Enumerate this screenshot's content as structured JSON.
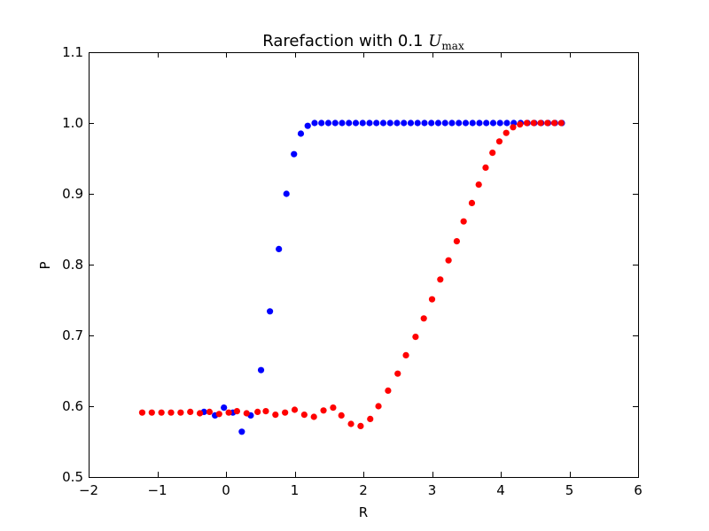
{
  "chart_data": {
    "type": "scatter",
    "title": "Rarefaction with 0.1 ",
    "title_math": "U",
    "title_math_sub": "max",
    "xlabel": "R",
    "ylabel": "P",
    "xlim": [
      -2,
      6
    ],
    "ylim": [
      0.5,
      1.1
    ],
    "xticks": [
      -2,
      -1,
      0,
      1,
      2,
      3,
      4,
      5,
      6
    ],
    "xtick_labels": [
      "−2",
      "−1",
      "0",
      "1",
      "2",
      "3",
      "4",
      "5",
      "6"
    ],
    "yticks": [
      0.5,
      0.6,
      0.7,
      0.8,
      0.9,
      1.0,
      1.1
    ],
    "ytick_labels": [
      "0.5",
      "0.6",
      "0.7",
      "0.8",
      "0.9",
      "1.0",
      "1.1"
    ],
    "grid": false,
    "legend": "none",
    "series": [
      {
        "color": "#0000ff",
        "points": [
          [
            -0.32,
            0.592
          ],
          [
            -0.16,
            0.587
          ],
          [
            -0.03,
            0.598
          ],
          [
            0.1,
            0.591
          ],
          [
            0.23,
            0.564
          ],
          [
            0.36,
            0.587
          ],
          [
            0.51,
            0.651
          ],
          [
            0.64,
            0.734
          ],
          [
            0.77,
            0.822
          ],
          [
            0.88,
            0.9
          ],
          [
            0.99,
            0.956
          ],
          [
            1.09,
            0.985
          ],
          [
            1.19,
            0.996
          ],
          [
            1.29,
            1.0
          ],
          [
            1.39,
            1.0
          ],
          [
            1.49,
            1.0
          ],
          [
            1.59,
            1.0
          ],
          [
            1.69,
            1.0
          ],
          [
            1.79,
            1.0
          ],
          [
            1.89,
            1.0
          ],
          [
            1.99,
            1.0
          ],
          [
            2.09,
            1.0
          ],
          [
            2.19,
            1.0
          ],
          [
            2.29,
            1.0
          ],
          [
            2.39,
            1.0
          ],
          [
            2.49,
            1.0
          ],
          [
            2.59,
            1.0
          ],
          [
            2.69,
            1.0
          ],
          [
            2.79,
            1.0
          ],
          [
            2.89,
            1.0
          ],
          [
            2.99,
            1.0
          ],
          [
            3.09,
            1.0
          ],
          [
            3.19,
            1.0
          ],
          [
            3.29,
            1.0
          ],
          [
            3.39,
            1.0
          ],
          [
            3.49,
            1.0
          ],
          [
            3.59,
            1.0
          ],
          [
            3.69,
            1.0
          ],
          [
            3.79,
            1.0
          ],
          [
            3.89,
            1.0
          ],
          [
            3.99,
            1.0
          ],
          [
            4.09,
            1.0
          ],
          [
            4.19,
            1.0
          ],
          [
            4.29,
            1.0
          ],
          [
            4.39,
            1.0
          ],
          [
            4.49,
            1.0
          ],
          [
            4.59,
            1.0
          ],
          [
            4.69,
            1.0
          ],
          [
            4.79,
            1.0
          ],
          [
            4.89,
            1.0
          ]
        ]
      },
      {
        "color": "#ff0000",
        "points": [
          [
            -1.22,
            0.591
          ],
          [
            -1.08,
            0.591
          ],
          [
            -0.94,
            0.591
          ],
          [
            -0.8,
            0.591
          ],
          [
            -0.66,
            0.591
          ],
          [
            -0.52,
            0.592
          ],
          [
            -0.38,
            0.59
          ],
          [
            -0.24,
            0.592
          ],
          [
            -0.1,
            0.589
          ],
          [
            0.04,
            0.591
          ],
          [
            0.16,
            0.593
          ],
          [
            0.3,
            0.59
          ],
          [
            0.46,
            0.592
          ],
          [
            0.58,
            0.593
          ],
          [
            0.72,
            0.588
          ],
          [
            0.86,
            0.591
          ],
          [
            1.0,
            0.595
          ],
          [
            1.14,
            0.588
          ],
          [
            1.28,
            0.585
          ],
          [
            1.42,
            0.594
          ],
          [
            1.56,
            0.598
          ],
          [
            1.68,
            0.587
          ],
          [
            1.82,
            0.575
          ],
          [
            1.96,
            0.572
          ],
          [
            2.1,
            0.582
          ],
          [
            2.22,
            0.6
          ],
          [
            2.36,
            0.622
          ],
          [
            2.5,
            0.646
          ],
          [
            2.62,
            0.672
          ],
          [
            2.76,
            0.698
          ],
          [
            2.88,
            0.724
          ],
          [
            3.0,
            0.751
          ],
          [
            3.12,
            0.779
          ],
          [
            3.24,
            0.806
          ],
          [
            3.36,
            0.833
          ],
          [
            3.46,
            0.861
          ],
          [
            3.58,
            0.887
          ],
          [
            3.68,
            0.913
          ],
          [
            3.78,
            0.937
          ],
          [
            3.88,
            0.958
          ],
          [
            3.98,
            0.974
          ],
          [
            4.08,
            0.986
          ],
          [
            4.18,
            0.994
          ],
          [
            4.28,
            0.998
          ],
          [
            4.38,
            1.0
          ],
          [
            4.48,
            1.0
          ],
          [
            4.58,
            1.0
          ],
          [
            4.68,
            1.0
          ],
          [
            4.78,
            1.0
          ],
          [
            4.88,
            1.0
          ]
        ]
      }
    ]
  }
}
